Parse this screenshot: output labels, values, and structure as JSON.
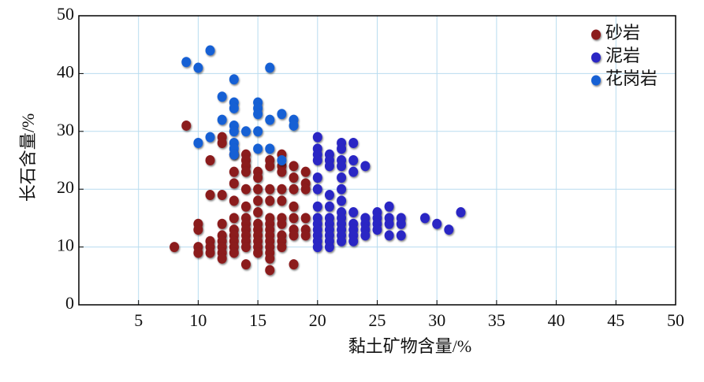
{
  "chart_data": {
    "type": "scatter",
    "xlabel": "黏土矿物含量/%",
    "ylabel": "长石含量/%",
    "xlim": [
      0,
      50
    ],
    "ylim": [
      0,
      50
    ],
    "xticks": [
      5,
      10,
      15,
      20,
      25,
      30,
      35,
      40,
      45,
      50
    ],
    "yticks": [
      0,
      10,
      20,
      30,
      40,
      50
    ],
    "grid": true,
    "legend": "upper right",
    "series": [
      {
        "name": "砂岩",
        "color": "#8b1a1f",
        "x": [
          8,
          9,
          10,
          10,
          10,
          10,
          11,
          11,
          11,
          11,
          11,
          12,
          12,
          12,
          12,
          12,
          12,
          12,
          12,
          12,
          13,
          13,
          13,
          13,
          13,
          13,
          13,
          13,
          13,
          13,
          14,
          14,
          14,
          14,
          14,
          14,
          14,
          14,
          14,
          14,
          14,
          14,
          14,
          15,
          15,
          15,
          15,
          15,
          15,
          15,
          15,
          15,
          15,
          15,
          16,
          16,
          16,
          16,
          16,
          16,
          16,
          16,
          16,
          16,
          16,
          16,
          16,
          17,
          17,
          17,
          17,
          17,
          17,
          17,
          17,
          17,
          17,
          18,
          18,
          18,
          18,
          18,
          18,
          18,
          18,
          19,
          19,
          19,
          19,
          19,
          19
        ],
        "values": [
          10,
          31,
          14,
          13,
          10,
          9,
          25,
          19,
          11,
          10,
          9,
          29,
          28,
          19,
          14,
          12,
          11,
          10,
          9,
          8,
          26,
          23,
          21,
          18,
          15,
          13,
          12,
          11,
          10,
          9,
          26,
          25,
          24,
          23,
          20,
          17,
          15,
          14,
          13,
          12,
          11,
          10,
          7,
          23,
          22,
          20,
          18,
          16,
          14,
          13,
          12,
          11,
          10,
          9,
          25,
          24,
          20,
          18,
          15,
          14,
          13,
          12,
          11,
          10,
          9,
          8,
          6,
          26,
          24,
          23,
          20,
          18,
          15,
          14,
          12,
          11,
          10,
          24,
          22,
          20,
          17,
          15,
          13,
          12,
          7,
          23,
          21,
          20,
          15,
          13,
          12
        ]
      },
      {
        "name": "泥岩",
        "color": "#2b28c4",
        "x": [
          20,
          20,
          20,
          20,
          20,
          20,
          20,
          20,
          20,
          20,
          20,
          20,
          20,
          21,
          21,
          21,
          21,
          21,
          21,
          21,
          21,
          21,
          21,
          21,
          22,
          22,
          22,
          22,
          22,
          22,
          22,
          22,
          22,
          22,
          22,
          22,
          22,
          23,
          23,
          23,
          23,
          23,
          23,
          23,
          23,
          24,
          24,
          24,
          24,
          24,
          25,
          25,
          25,
          25,
          26,
          26,
          26,
          26,
          27,
          27,
          27,
          29,
          30,
          31,
          32
        ],
        "values": [
          29,
          27,
          26,
          25,
          22,
          20,
          17,
          15,
          14,
          13,
          12,
          11,
          10,
          26,
          25,
          24,
          19,
          17,
          15,
          14,
          13,
          12,
          11,
          10,
          28,
          27,
          25,
          24,
          22,
          20,
          18,
          16,
          15,
          14,
          13,
          12,
          11,
          28,
          25,
          23,
          16,
          14,
          13,
          12,
          11,
          24,
          15,
          14,
          13,
          12,
          16,
          15,
          14,
          13,
          17,
          15,
          14,
          12,
          15,
          14,
          12,
          15,
          14,
          13,
          16
        ]
      },
      {
        "name": "花岗岩",
        "color": "#1760d4",
        "x": [
          9,
          10,
          11,
          13,
          12,
          13,
          13,
          15,
          15,
          15,
          16,
          17,
          18,
          18,
          12,
          13,
          13,
          14,
          15,
          16,
          10,
          11,
          13,
          13,
          13,
          15,
          16,
          17
        ],
        "values": [
          42,
          41,
          44,
          39,
          36,
          35,
          34,
          35,
          34,
          33,
          41,
          33,
          32,
          31,
          32,
          31,
          30,
          30,
          30,
          32,
          28,
          29,
          28,
          27,
          26,
          27,
          27,
          25
        ]
      }
    ]
  }
}
